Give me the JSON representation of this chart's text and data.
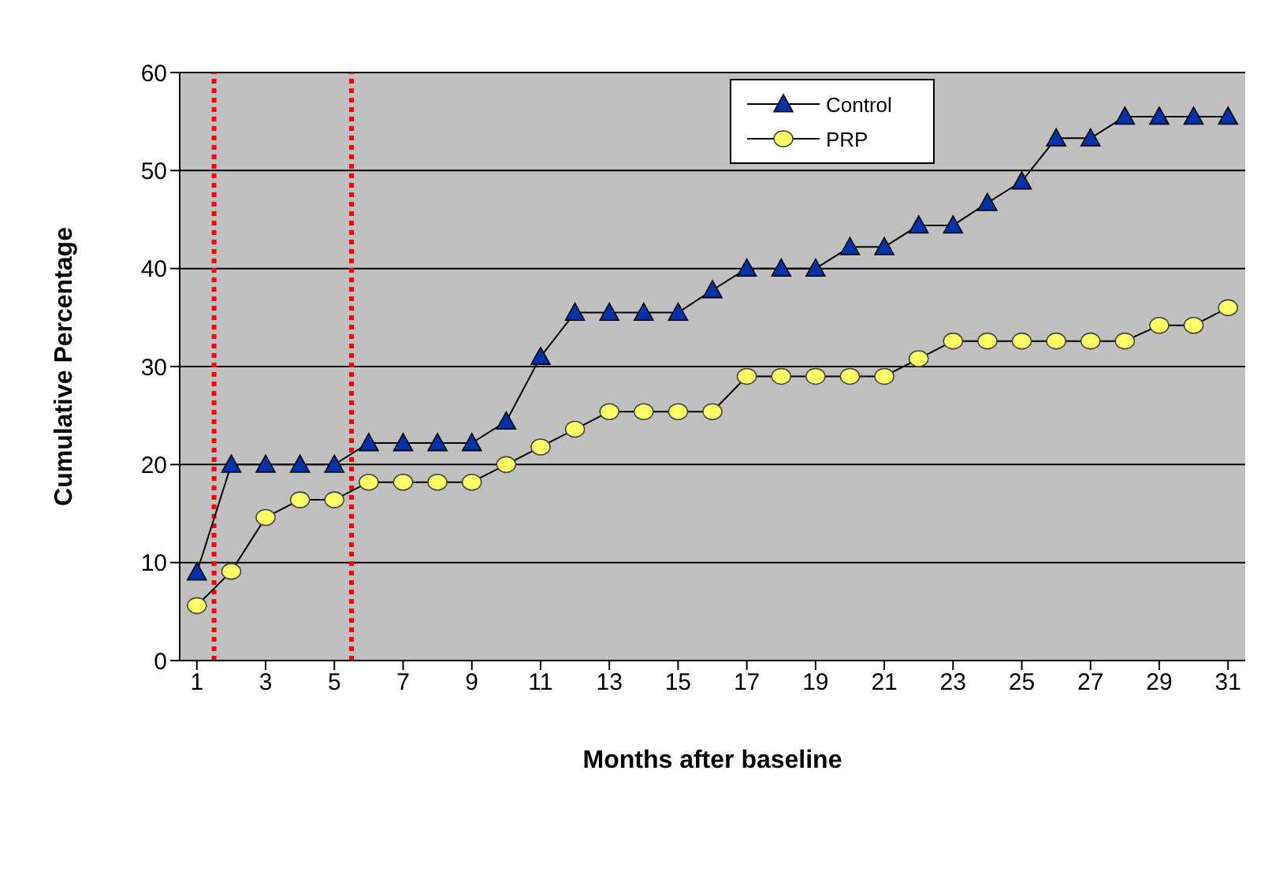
{
  "chart_data": {
    "type": "line",
    "xlabel": "Months after baseline",
    "ylabel": "Cumulative Percentage",
    "x": [
      1,
      2,
      3,
      4,
      5,
      6,
      7,
      8,
      9,
      10,
      11,
      12,
      13,
      14,
      15,
      16,
      17,
      18,
      19,
      20,
      21,
      22,
      23,
      24,
      25,
      26,
      27,
      28,
      29,
      30,
      31
    ],
    "series": [
      {
        "name": "Control",
        "color": "#0033aa",
        "marker": "triangle",
        "values": [
          9,
          20,
          20,
          20,
          20,
          22.2,
          22.2,
          22.2,
          22.2,
          24.4,
          31,
          35.5,
          35.5,
          35.5,
          35.5,
          37.8,
          40,
          40,
          40,
          42.2,
          42.2,
          44.4,
          44.4,
          46.7,
          48.9,
          53.3,
          53.3,
          55.5,
          55.5,
          55.5,
          55.5
        ]
      },
      {
        "name": "PRP",
        "color": "#ffff66",
        "marker": "circle",
        "values": [
          5.6,
          9.1,
          14.6,
          16.4,
          16.4,
          18.2,
          18.2,
          18.2,
          18.2,
          20,
          21.8,
          23.6,
          25.4,
          25.4,
          25.4,
          25.4,
          29,
          29,
          29,
          29,
          29,
          30.8,
          32.6,
          32.6,
          32.6,
          32.6,
          32.6,
          32.6,
          34.2,
          34.2,
          36
        ]
      }
    ],
    "xlim": [
      0.5,
      31.5
    ],
    "xticks": [
      1,
      3,
      5,
      7,
      9,
      11,
      13,
      15,
      17,
      19,
      21,
      23,
      25,
      27,
      29,
      31
    ],
    "ylim": [
      0,
      60
    ],
    "yticks": [
      0,
      10,
      20,
      30,
      40,
      50,
      60
    ],
    "ref_lines": [
      {
        "axis": "x",
        "value": 1.5,
        "color": "#ff0000",
        "line_style": "dotted"
      },
      {
        "axis": "x",
        "value": 5.5,
        "color": "#ff0000",
        "line_style": "dotted"
      }
    ],
    "grid": "y",
    "legend": "top right"
  }
}
